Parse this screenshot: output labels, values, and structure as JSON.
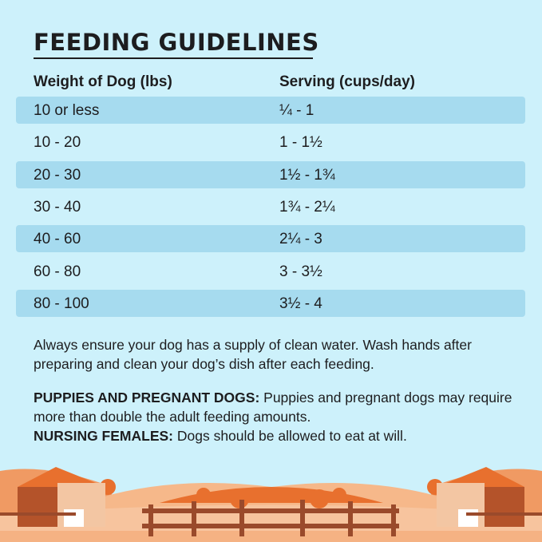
{
  "title": "FEEDING GUIDELINES",
  "table": {
    "headers": [
      "Weight of Dog (lbs)",
      "Serving (cups/day)"
    ],
    "rows": [
      [
        "10 or less",
        "¼ - 1"
      ],
      [
        "10 - 20",
        "1 - 1½"
      ],
      [
        "20 - 30",
        "1½ - 1¾"
      ],
      [
        "30 - 40",
        "1¾ - 2¼"
      ],
      [
        "40 - 60",
        "2¼ - 3"
      ],
      [
        "60 - 80",
        "3 - 3½"
      ],
      [
        "80 - 100",
        "3½ - 4"
      ]
    ]
  },
  "note": "Always ensure your dog has a supply of clean water. Wash hands after preparing and clean your dog’s dish after each feeding.",
  "puppies": {
    "label": "PUPPIES AND PREGNANT DOGS:",
    "text": " Puppies and pregnant dogs may require more than double the adult feeding amounts."
  },
  "nursing": {
    "label": "NURSING FEMALES:",
    "text": " Dogs should be allowed to eat at will."
  },
  "colors": {
    "background": "#cdf1fb",
    "row_band": "#a6dbef",
    "text": "#1d1d1f",
    "farm_orange": "#e8702e",
    "barn": "#b4532a"
  }
}
